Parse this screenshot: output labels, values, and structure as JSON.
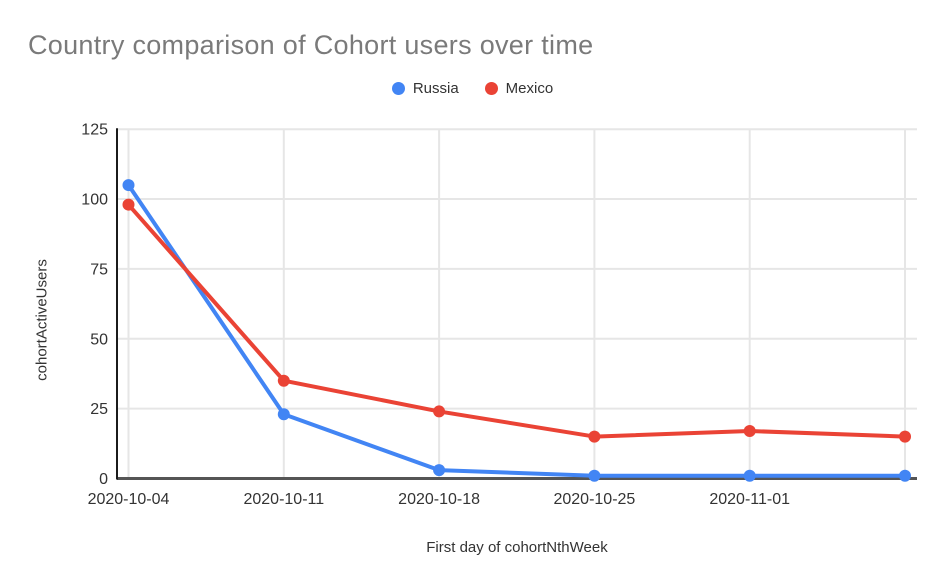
{
  "page": {
    "background": "#ffffff"
  },
  "chart_data": {
    "type": "line",
    "title": "Country comparison of Cohort users over time",
    "xlabel": "First day of cohortNthWeek",
    "ylabel": "cohortActiveUsers",
    "legend_position": "top",
    "grid": true,
    "ylim": [
      0,
      125
    ],
    "y_ticks": [
      0,
      25,
      50,
      75,
      100,
      125
    ],
    "x_tick_labels": [
      "2020-10-04",
      "2020-10-11",
      "2020-10-18",
      "2020-10-25",
      "2020-11-01"
    ],
    "num_points": 6,
    "series": [
      {
        "name": "Russia",
        "color": "#4285F4",
        "values": [
          105,
          23,
          3,
          1,
          1,
          1
        ]
      },
      {
        "name": "Mexico",
        "color": "#EA4335",
        "values": [
          98,
          35,
          24,
          15,
          17,
          15
        ]
      }
    ],
    "colors": {
      "title": "#7a7a7a",
      "tick_label": "#333333",
      "axis_title": "#333333",
      "gridline": "#e6e6e6",
      "baseline": "#555555",
      "y_axis_line": "#1b1b1b"
    }
  }
}
